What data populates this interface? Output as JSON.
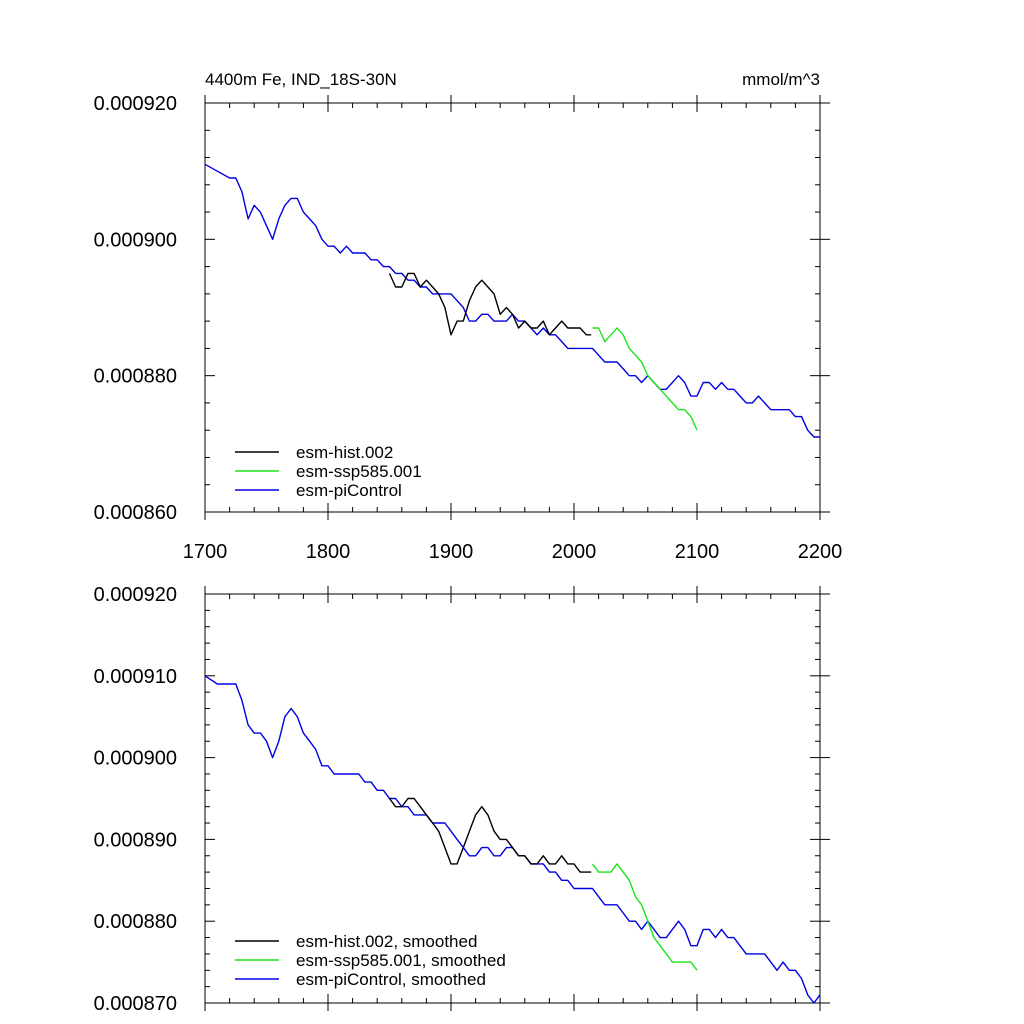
{
  "figure": {
    "title_left": "4400m Fe, IND_18S-30N",
    "title_right": "mmol/m^3"
  },
  "chart_data": [
    {
      "type": "line",
      "title": "4400m Fe, IND_18S-30N",
      "units": "mmol/m^3",
      "xlim": [
        1700,
        2200
      ],
      "ylim": [
        0.00086,
        0.00092
      ],
      "x_ticks": [
        "1700",
        "1800",
        "1900",
        "2000",
        "2100",
        "2200"
      ],
      "y_ticks": [
        "0.000920",
        "0.000900",
        "0.000880",
        "0.000860"
      ],
      "legend_position": "bottom-left",
      "series": [
        {
          "name": "esm-hist.002",
          "color": "#000000",
          "x": [
            1850,
            1855,
            1860,
            1865,
            1870,
            1875,
            1880,
            1885,
            1890,
            1895,
            1900,
            1905,
            1910,
            1915,
            1920,
            1925,
            1930,
            1935,
            1940,
            1945,
            1950,
            1955,
            1960,
            1965,
            1970,
            1975,
            1980,
            1985,
            1990,
            1995,
            2000,
            2005,
            2010,
            2014
          ],
          "y": [
            0.000895,
            0.000893,
            0.000893,
            0.000895,
            0.000895,
            0.000893,
            0.000894,
            0.000893,
            0.000892,
            0.00089,
            0.000886,
            0.000888,
            0.000888,
            0.000891,
            0.000893,
            0.000894,
            0.000893,
            0.000892,
            0.000889,
            0.00089,
            0.000889,
            0.000887,
            0.000888,
            0.000887,
            0.000887,
            0.000888,
            0.000886,
            0.000887,
            0.000888,
            0.000887,
            0.000887,
            0.000887,
            0.000886,
            0.000886
          ]
        },
        {
          "name": "esm-ssp585.001",
          "color": "#19e619",
          "x": [
            2015,
            2020,
            2025,
            2030,
            2035,
            2040,
            2045,
            2050,
            2055,
            2060,
            2065,
            2070,
            2075,
            2080,
            2085,
            2090,
            2095,
            2100
          ],
          "y": [
            0.000887,
            0.000887,
            0.000885,
            0.000886,
            0.000887,
            0.000886,
            0.000884,
            0.000883,
            0.000882,
            0.00088,
            0.000879,
            0.000878,
            0.000877,
            0.000876,
            0.000875,
            0.000875,
            0.000874,
            0.000872
          ]
        },
        {
          "name": "esm-piControl",
          "color": "#0000e6",
          "x": [
            1700,
            1710,
            1720,
            1725,
            1730,
            1735,
            1740,
            1745,
            1750,
            1755,
            1760,
            1765,
            1770,
            1775,
            1780,
            1785,
            1790,
            1795,
            1800,
            1805,
            1810,
            1815,
            1820,
            1825,
            1830,
            1835,
            1840,
            1845,
            1850,
            1855,
            1860,
            1865,
            1870,
            1875,
            1880,
            1885,
            1890,
            1895,
            1900,
            1905,
            1910,
            1915,
            1920,
            1925,
            1930,
            1935,
            1940,
            1945,
            1950,
            1955,
            1960,
            1965,
            1970,
            1975,
            1980,
            1985,
            1990,
            1995,
            2000,
            2005,
            2010,
            2015,
            2020,
            2025,
            2030,
            2035,
            2040,
            2045,
            2050,
            2055,
            2060,
            2065,
            2070,
            2075,
            2080,
            2085,
            2090,
            2095,
            2100,
            2105,
            2110,
            2115,
            2120,
            2125,
            2130,
            2135,
            2140,
            2145,
            2150,
            2155,
            2160,
            2165,
            2170,
            2175,
            2180,
            2185,
            2190,
            2195,
            2200
          ],
          "y": [
            0.000911,
            0.00091,
            0.000909,
            0.000909,
            0.000907,
            0.000903,
            0.000905,
            0.000904,
            0.000902,
            0.0009,
            0.000903,
            0.000905,
            0.000906,
            0.000906,
            0.000904,
            0.000903,
            0.000902,
            0.0009,
            0.000899,
            0.000899,
            0.000898,
            0.000899,
            0.000898,
            0.000898,
            0.000898,
            0.000897,
            0.000897,
            0.000896,
            0.000896,
            0.000895,
            0.000895,
            0.000894,
            0.000894,
            0.000893,
            0.000893,
            0.000892,
            0.000892,
            0.000892,
            0.000892,
            0.000891,
            0.00089,
            0.000888,
            0.000888,
            0.000889,
            0.000889,
            0.000888,
            0.000888,
            0.000888,
            0.000889,
            0.000888,
            0.000888,
            0.000887,
            0.000886,
            0.000887,
            0.000886,
            0.000886,
            0.000885,
            0.000884,
            0.000884,
            0.000884,
            0.000884,
            0.000884,
            0.000883,
            0.000882,
            0.000882,
            0.000882,
            0.000881,
            0.00088,
            0.00088,
            0.000879,
            0.00088,
            0.000879,
            0.000878,
            0.000878,
            0.000879,
            0.00088,
            0.000879,
            0.000877,
            0.000877,
            0.000879,
            0.000879,
            0.000878,
            0.000879,
            0.000878,
            0.000878,
            0.000877,
            0.000876,
            0.000876,
            0.000877,
            0.000876,
            0.000875,
            0.000875,
            0.000875,
            0.000875,
            0.000874,
            0.000874,
            0.000872,
            0.000871,
            0.000871
          ]
        }
      ]
    },
    {
      "type": "line",
      "title": "",
      "xlim": [
        1700,
        2200
      ],
      "ylim": [
        0.00087,
        0.00092
      ],
      "x_ticks": [],
      "y_ticks": [
        "0.000920",
        "0.000910",
        "0.000900",
        "0.000890",
        "0.000880",
        "0.000870"
      ],
      "legend_position": "bottom-left",
      "series": [
        {
          "name": "esm-hist.002, smoothed",
          "color": "#000000",
          "x": [
            1850,
            1855,
            1860,
            1865,
            1870,
            1875,
            1880,
            1885,
            1890,
            1895,
            1900,
            1905,
            1910,
            1915,
            1920,
            1925,
            1930,
            1935,
            1940,
            1945,
            1950,
            1955,
            1960,
            1965,
            1970,
            1975,
            1980,
            1985,
            1990,
            1995,
            2000,
            2005,
            2010,
            2014
          ],
          "y": [
            0.000895,
            0.000894,
            0.000894,
            0.000895,
            0.000895,
            0.000894,
            0.000893,
            0.000892,
            0.000891,
            0.000889,
            0.000887,
            0.000887,
            0.000889,
            0.000891,
            0.000893,
            0.000894,
            0.000893,
            0.000891,
            0.00089,
            0.00089,
            0.000889,
            0.000888,
            0.000888,
            0.000887,
            0.000887,
            0.000888,
            0.000887,
            0.000887,
            0.000888,
            0.000887,
            0.000887,
            0.000886,
            0.000886,
            0.000886
          ]
        },
        {
          "name": "esm-ssp585.001, smoothed",
          "color": "#19e619",
          "x": [
            2015,
            2020,
            2025,
            2030,
            2035,
            2040,
            2045,
            2050,
            2055,
            2060,
            2065,
            2070,
            2075,
            2080,
            2085,
            2090,
            2095,
            2100
          ],
          "y": [
            0.000887,
            0.000886,
            0.000886,
            0.000886,
            0.000887,
            0.000886,
            0.000885,
            0.000883,
            0.000882,
            0.00088,
            0.000878,
            0.000877,
            0.000876,
            0.000875,
            0.000875,
            0.000875,
            0.000875,
            0.000874
          ]
        },
        {
          "name": "esm-piControl, smoothed",
          "color": "#0000e6",
          "x": [
            1700,
            1710,
            1720,
            1725,
            1730,
            1735,
            1740,
            1745,
            1750,
            1755,
            1760,
            1765,
            1770,
            1775,
            1780,
            1785,
            1790,
            1795,
            1800,
            1805,
            1810,
            1815,
            1820,
            1825,
            1830,
            1835,
            1840,
            1845,
            1850,
            1855,
            1860,
            1865,
            1870,
            1875,
            1880,
            1885,
            1890,
            1895,
            1900,
            1905,
            1910,
            1915,
            1920,
            1925,
            1930,
            1935,
            1940,
            1945,
            1950,
            1955,
            1960,
            1965,
            1970,
            1975,
            1980,
            1985,
            1990,
            1995,
            2000,
            2005,
            2010,
            2015,
            2020,
            2025,
            2030,
            2035,
            2040,
            2045,
            2050,
            2055,
            2060,
            2065,
            2070,
            2075,
            2080,
            2085,
            2090,
            2095,
            2100,
            2105,
            2110,
            2115,
            2120,
            2125,
            2130,
            2135,
            2140,
            2145,
            2150,
            2155,
            2160,
            2165,
            2170,
            2175,
            2180,
            2185,
            2190,
            2195,
            2200
          ],
          "y": [
            0.00091,
            0.000909,
            0.000909,
            0.000909,
            0.000907,
            0.000904,
            0.000903,
            0.000903,
            0.000902,
            0.0009,
            0.000902,
            0.000905,
            0.000906,
            0.000905,
            0.000903,
            0.000902,
            0.000901,
            0.000899,
            0.000899,
            0.000898,
            0.000898,
            0.000898,
            0.000898,
            0.000898,
            0.000897,
            0.000897,
            0.000896,
            0.000896,
            0.000895,
            0.000895,
            0.000894,
            0.000894,
            0.000893,
            0.000893,
            0.000893,
            0.000892,
            0.000892,
            0.000892,
            0.000891,
            0.00089,
            0.000889,
            0.000888,
            0.000888,
            0.000889,
            0.000889,
            0.000888,
            0.000888,
            0.000889,
            0.000889,
            0.000888,
            0.000888,
            0.000887,
            0.000887,
            0.000887,
            0.000886,
            0.000886,
            0.000885,
            0.000885,
            0.000884,
            0.000884,
            0.000884,
            0.000884,
            0.000883,
            0.000882,
            0.000882,
            0.000882,
            0.000881,
            0.00088,
            0.00088,
            0.000879,
            0.00088,
            0.000879,
            0.000878,
            0.000878,
            0.000879,
            0.00088,
            0.000879,
            0.000877,
            0.000877,
            0.000879,
            0.000879,
            0.000878,
            0.000879,
            0.000878,
            0.000878,
            0.000877,
            0.000876,
            0.000876,
            0.000876,
            0.000876,
            0.000875,
            0.000874,
            0.000875,
            0.000874,
            0.000874,
            0.000873,
            0.000871,
            0.00087,
            0.000871
          ]
        }
      ]
    }
  ]
}
